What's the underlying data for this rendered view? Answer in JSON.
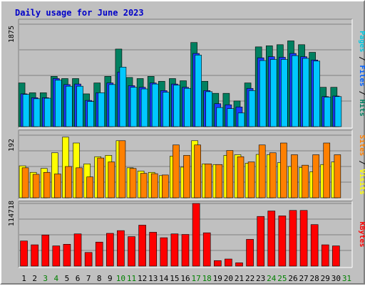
{
  "chart_data": {
    "type": "bar",
    "title": "Daily usage for June 2023",
    "days": [
      "1",
      "2",
      "3",
      "4",
      "5",
      "6",
      "7",
      "8",
      "9",
      "10",
      "11",
      "12",
      "13",
      "14",
      "15",
      "16",
      "17",
      "18",
      "19",
      "20",
      "21",
      "22",
      "23",
      "24",
      "25",
      "26",
      "27",
      "28",
      "29",
      "30",
      "31"
    ],
    "weekend_days": [
      "3",
      "4",
      "10",
      "11",
      "17",
      "18",
      "24",
      "25",
      "31"
    ],
    "panels": [
      {
        "id": "hits",
        "ytick": "1875",
        "ymax": 1875,
        "right_label": [
          {
            "text": "Pages",
            "color": "#00c8e0"
          },
          {
            "text": " / ",
            "color": "#000000"
          },
          {
            "text": "Files",
            "color": "#0060ff"
          },
          {
            "text": " / ",
            "color": "#000000"
          },
          {
            "text": "Hits",
            "color": "#008060"
          }
        ],
        "series": [
          {
            "name": "Hits",
            "color": "#008060",
            "values": [
              800,
              620,
              620,
              920,
              880,
              880,
              600,
              800,
              920,
              1420,
              900,
              880,
              920,
              830,
              880,
              840,
              1540,
              830,
              610,
              610,
              470,
              800,
              1460,
              1480,
              1500,
              1570,
              1500,
              1360,
              720,
              720
            ]
          },
          {
            "name": "Files",
            "color": "#1a3cff",
            "values": [
              600,
              530,
              530,
              880,
              770,
              780,
              480,
              620,
              800,
              1000,
              750,
              720,
              800,
              660,
              780,
              720,
              1340,
              660,
              420,
              400,
              360,
              700,
              1260,
              1280,
              1270,
              1340,
              1280,
              1220,
              550,
              560
            ]
          },
          {
            "name": "Pages",
            "color": "#00c8ff",
            "values": [
              590,
              510,
              520,
              850,
              740,
              740,
              460,
              620,
              770,
              1090,
              720,
              690,
              780,
              630,
              760,
              700,
              1310,
              640,
              350,
              330,
              250,
              660,
              1210,
              1230,
              1230,
              1300,
              1250,
              1200,
              540,
              550
            ]
          }
        ]
      },
      {
        "id": "visits",
        "ytick": "192",
        "ymax": 192,
        "right_label": [
          {
            "text": "Sites",
            "color": "#ff8000"
          },
          {
            "text": " / ",
            "color": "#000000"
          },
          {
            "text": "Visits",
            "color": "#ffff00"
          }
        ],
        "series": [
          {
            "name": "Visits",
            "color": "#ffff00",
            "values": [
              98,
              78,
              90,
              138,
              186,
              168,
              104,
              126,
              130,
              175,
              92,
              82,
              78,
              68,
              128,
              94,
              175,
              104,
              102,
              130,
              132,
              106,
              133,
              132,
              108,
              96,
              93,
              80,
              102,
              110
            ]
          },
          {
            "name": "Sites",
            "color": "#ff8000",
            "values": [
              92,
              72,
              78,
              73,
              96,
              92,
              64,
              122,
              110,
              175,
              90,
              75,
              74,
              70,
              162,
              130,
              162,
              104,
              102,
              145,
              126,
              110,
              162,
              138,
              168,
              132,
              100,
              132,
              168,
              132
            ]
          }
        ]
      },
      {
        "id": "kbytes",
        "ytick": "114718",
        "ymax": 114718,
        "right_label": [
          {
            "text": "KBytes",
            "color": "#ff0000"
          }
        ],
        "series": [
          {
            "name": "KBytes",
            "color": "#ff0000",
            "values": [
              46000,
              39000,
              57000,
              37000,
              40000,
              59000,
              25000,
              44000,
              60000,
              65000,
              54000,
              75000,
              62000,
              52000,
              59000,
              58000,
              114718,
              61000,
              10000,
              13000,
              6000,
              49000,
              91000,
              101000,
              92000,
              102000,
              102000,
              76000,
              39000,
              37000
            ]
          }
        ]
      }
    ]
  }
}
